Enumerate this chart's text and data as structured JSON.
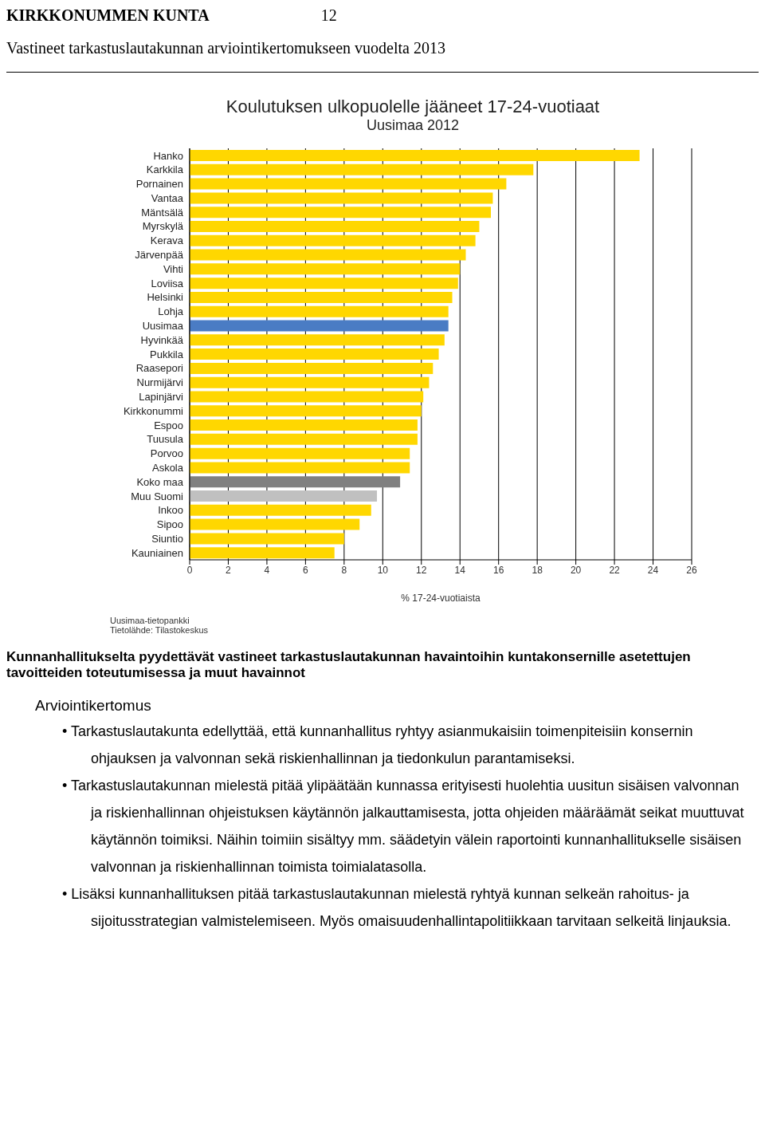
{
  "chart_data": {
    "type": "bar",
    "orientation": "horizontal",
    "title": "Koulutuksen ulkopuolelle jääneet 17-24-vuotiaat",
    "subtitle": "Uusimaa 2012",
    "xlabel": "% 17-24-vuotiaista",
    "categories": [
      "Hanko",
      "Karkkila",
      "Pornainen",
      "Vantaa",
      "Mäntsälä",
      "Myrskylä",
      "Kerava",
      "Järvenpää",
      "Vihti",
      "Loviisa",
      "Helsinki",
      "Lohja",
      "Uusimaa",
      "Hyvinkää",
      "Pukkila",
      "Raasepori",
      "Nurmijärvi",
      "Lapinjärvi",
      "Kirkkonummi",
      "Espoo",
      "Tuusula",
      "Porvoo",
      "Askola",
      "Koko maa",
      "Muu Suomi",
      "Inkoo",
      "Sipoo",
      "Siuntio",
      "Kauniainen"
    ],
    "values": [
      23.3,
      17.8,
      16.4,
      15.7,
      15.6,
      15.0,
      14.8,
      14.3,
      14.0,
      13.9,
      13.6,
      13.4,
      13.4,
      13.2,
      12.9,
      12.6,
      12.4,
      12.1,
      12.0,
      11.8,
      11.8,
      11.4,
      11.4,
      10.9,
      9.7,
      9.4,
      8.8,
      8.0,
      7.5
    ],
    "colors": [
      "#ffd700",
      "#ffd700",
      "#ffd700",
      "#ffd700",
      "#ffd700",
      "#ffd700",
      "#ffd700",
      "#ffd700",
      "#ffd700",
      "#ffd700",
      "#ffd700",
      "#ffd700",
      "#4a7cc4",
      "#ffd700",
      "#ffd700",
      "#ffd700",
      "#ffd700",
      "#ffd700",
      "#ffd700",
      "#ffd700",
      "#ffd700",
      "#ffd700",
      "#ffd700",
      "#808080",
      "#c0c0c0",
      "#ffd700",
      "#ffd700",
      "#ffd700",
      "#ffd700"
    ],
    "xlim": [
      0,
      26
    ],
    "xticks": [
      0,
      2,
      4,
      6,
      8,
      10,
      12,
      14,
      16,
      18,
      20,
      22,
      24,
      26
    ],
    "grid": "x",
    "annotations": [
      "KIRKKONUMMEN KUNTA",
      "12",
      "Vastineet tarkastuslautakunnan arviointikertomukseen vuodelta 2013",
      "Uusimaa-tietopankki",
      "Tietolähde: Tilastokeskus",
      "Kunnanhallitukselta pyydettävät vastineet tarkastuslautakunnan havaintoihin kuntakonsernille asetettujen tavoitteiden toteutumisessa ja muut havainnot",
      "Arviointikertomus",
      "• Tarkastuslautakunta edellyttää, että kunnanhallitus ryhtyy asianmukaisiin toimenpiteisiin konsernin ohjauksen ja valvonnan sekä riskienhallinnan ja tiedonkulun parantamiseksi.",
      "• Tarkastuslautakunnan mielestä pitää ylipäätään kunnassa erityisesti huolehtia uusitun sisäisen valvonnan ja riskienhallinnan ohjeistuksen käytännön jalkauttamisesta, jotta ohjeiden määräämät seikat muuttuvat käytännön toimiksi. Näihin toimiin sisältyy mm. säädetyin välein raportointi kunnanhallitukselle sisäisen valvonnan ja riskienhallinnan toimista toimialatasolla.",
      "• Lisäksi kunnanhallituksen pitää tarkastuslautakunnan mielestä ryhtyä kunnan selkeän rahoitus- ja sijoitusstrategian valmistelemiseen. Myös omaisuudenhallintapolitiikkaan tarvitaan selkeitä linjauksia."
    ]
  }
}
